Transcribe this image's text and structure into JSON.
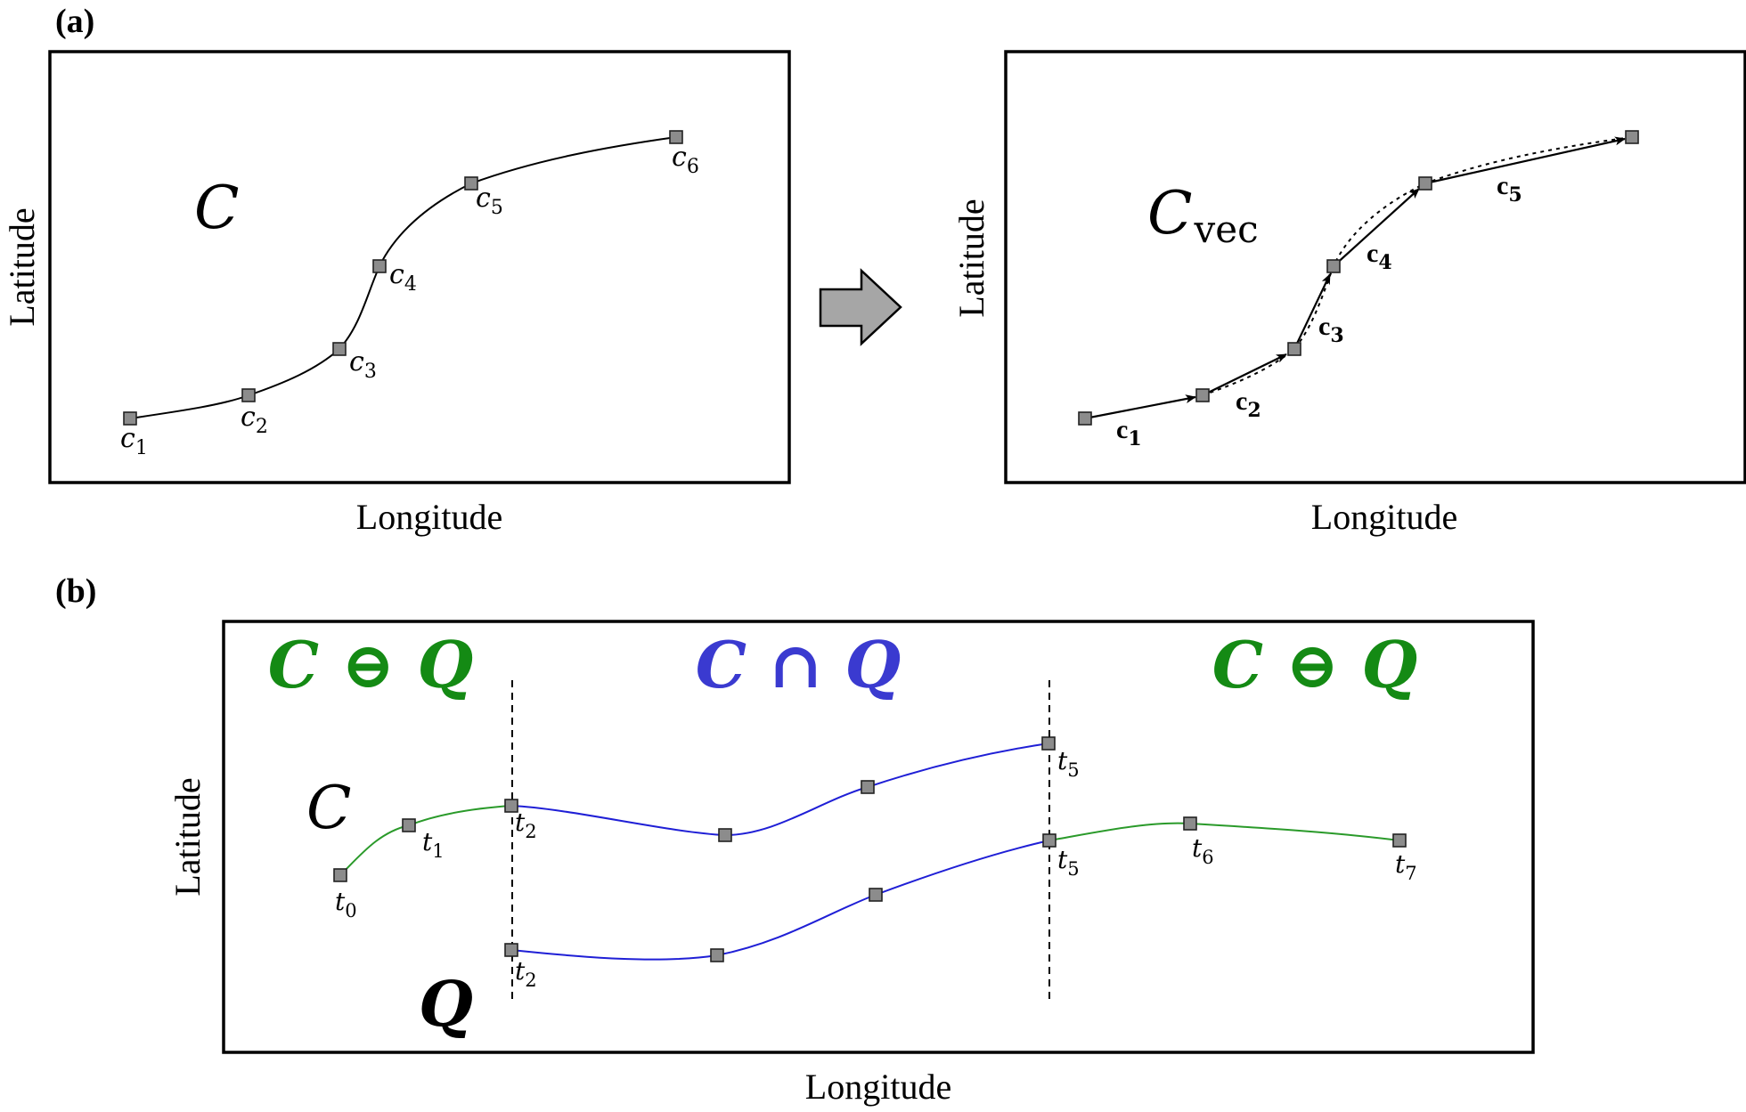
{
  "panel_a": {
    "label": "(a)",
    "left": {
      "curve_symbol": "C",
      "xlabel": "Longitude",
      "ylabel": "Latitude",
      "points": [
        {
          "name": "c",
          "sub": "1"
        },
        {
          "name": "c",
          "sub": "2"
        },
        {
          "name": "c",
          "sub": "3"
        },
        {
          "name": "c",
          "sub": "4"
        },
        {
          "name": "c",
          "sub": "5"
        },
        {
          "name": "c",
          "sub": "6"
        }
      ]
    },
    "right": {
      "curve_symbol": "C",
      "curve_symbol_sub": "vec",
      "xlabel": "Longitude",
      "ylabel": "Latitude",
      "vectors": [
        {
          "name": "c",
          "sub": "1"
        },
        {
          "name": "c",
          "sub": "2"
        },
        {
          "name": "c",
          "sub": "3"
        },
        {
          "name": "c",
          "sub": "4"
        },
        {
          "name": "c",
          "sub": "5"
        }
      ]
    }
  },
  "panel_b": {
    "label": "(b)",
    "xlabel": "Longitude",
    "ylabel": "Latitude",
    "region_left": "C ⊖ Q",
    "region_middle": "C ∩ Q",
    "region_right": "C ⊖ Q",
    "curve_c_symbol": "C",
    "curve_q_symbol": "Q",
    "c_points": [
      {
        "name": "t",
        "sub": "0"
      },
      {
        "name": "t",
        "sub": "1"
      },
      {
        "name": "t",
        "sub": "2"
      },
      {
        "name": "t",
        "sub": "5"
      }
    ],
    "q_points": [
      {
        "name": "t",
        "sub": "2"
      },
      {
        "name": "t",
        "sub": "5"
      },
      {
        "name": "t",
        "sub": "6"
      },
      {
        "name": "t",
        "sub": "7"
      }
    ]
  },
  "colors": {
    "difference_green": "#148a14",
    "intersection_blue": "#3a3ad0",
    "curve_blue": "#1f1fd6",
    "curve_green": "#2a9a2a",
    "node_gray": "#8c8c8c",
    "arrow_gray": "#a6a6a6"
  }
}
